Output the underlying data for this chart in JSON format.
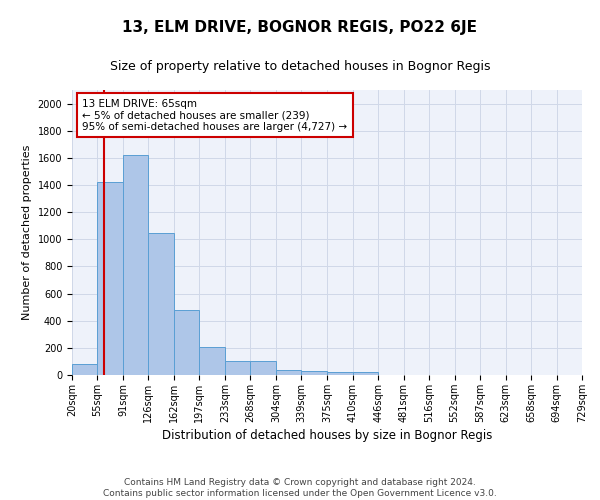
{
  "title1": "13, ELM DRIVE, BOGNOR REGIS, PO22 6JE",
  "title2": "Size of property relative to detached houses in Bognor Regis",
  "xlabel": "Distribution of detached houses by size in Bognor Regis",
  "ylabel": "Number of detached properties",
  "footnote": "Contains HM Land Registry data © Crown copyright and database right 2024.\nContains public sector information licensed under the Open Government Licence v3.0.",
  "bin_edges": [
    20,
    55,
    91,
    126,
    162,
    197,
    233,
    268,
    304,
    339,
    375,
    410,
    446,
    481,
    516,
    552,
    587,
    623,
    658,
    694,
    729
  ],
  "bar_heights": [
    80,
    1420,
    1620,
    1050,
    480,
    205,
    100,
    100,
    40,
    30,
    25,
    20,
    0,
    0,
    0,
    0,
    0,
    0,
    0,
    0
  ],
  "bar_color": "#aec6e8",
  "bar_edge_color": "#5a9fd4",
  "grid_color": "#d0d8e8",
  "bg_color": "#eef2fa",
  "vline_x": 65,
  "vline_color": "#cc0000",
  "annotation_line1": "13 ELM DRIVE: 65sqm",
  "annotation_line2": "← 5% of detached houses are smaller (239)",
  "annotation_line3": "95% of semi-detached houses are larger (4,727) →",
  "annotation_box_color": "#cc0000",
  "ylim": [
    0,
    2100
  ],
  "yticks": [
    0,
    200,
    400,
    600,
    800,
    1000,
    1200,
    1400,
    1600,
    1800,
    2000
  ],
  "title1_fontsize": 11,
  "title2_fontsize": 9,
  "xlabel_fontsize": 8.5,
  "ylabel_fontsize": 8,
  "tick_fontsize": 7,
  "annot_fontsize": 7.5,
  "footnote_fontsize": 6.5
}
